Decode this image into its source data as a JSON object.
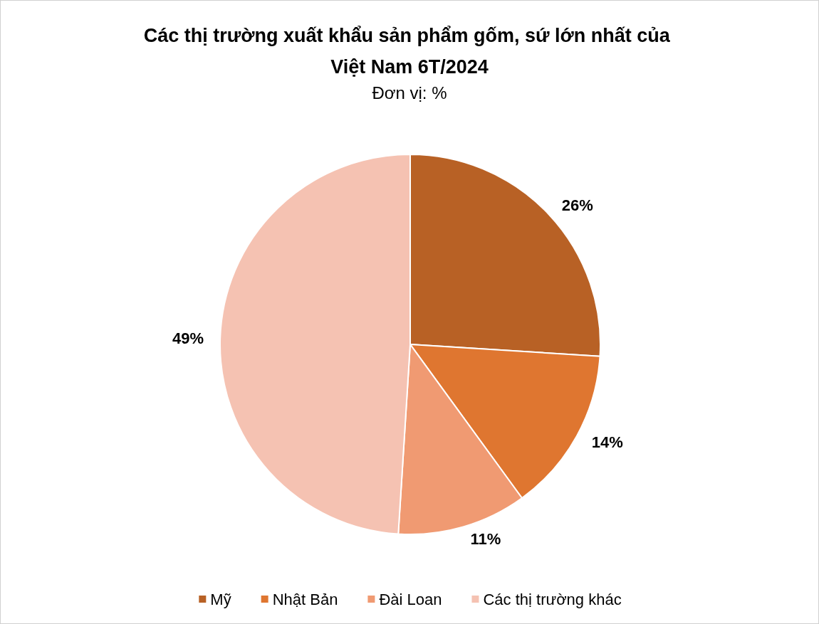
{
  "chart_data": {
    "type": "pie",
    "title": "Các thị trường xuất khẩu sản phẩm gốm, sứ lớn nhất của Việt Nam 6T/2024",
    "subtitle": "Đơn vị: %",
    "categories": [
      "Mỹ",
      "Nhật Bản",
      "Đài Loan",
      "Các thị trường khác"
    ],
    "values": [
      26,
      14,
      11,
      49
    ],
    "colors": [
      "#b86125",
      "#df7630",
      "#f09a72",
      "#f5c2b2"
    ],
    "value_labels": [
      "26%",
      "14%",
      "11%",
      "49%"
    ],
    "legend": "bottom"
  }
}
